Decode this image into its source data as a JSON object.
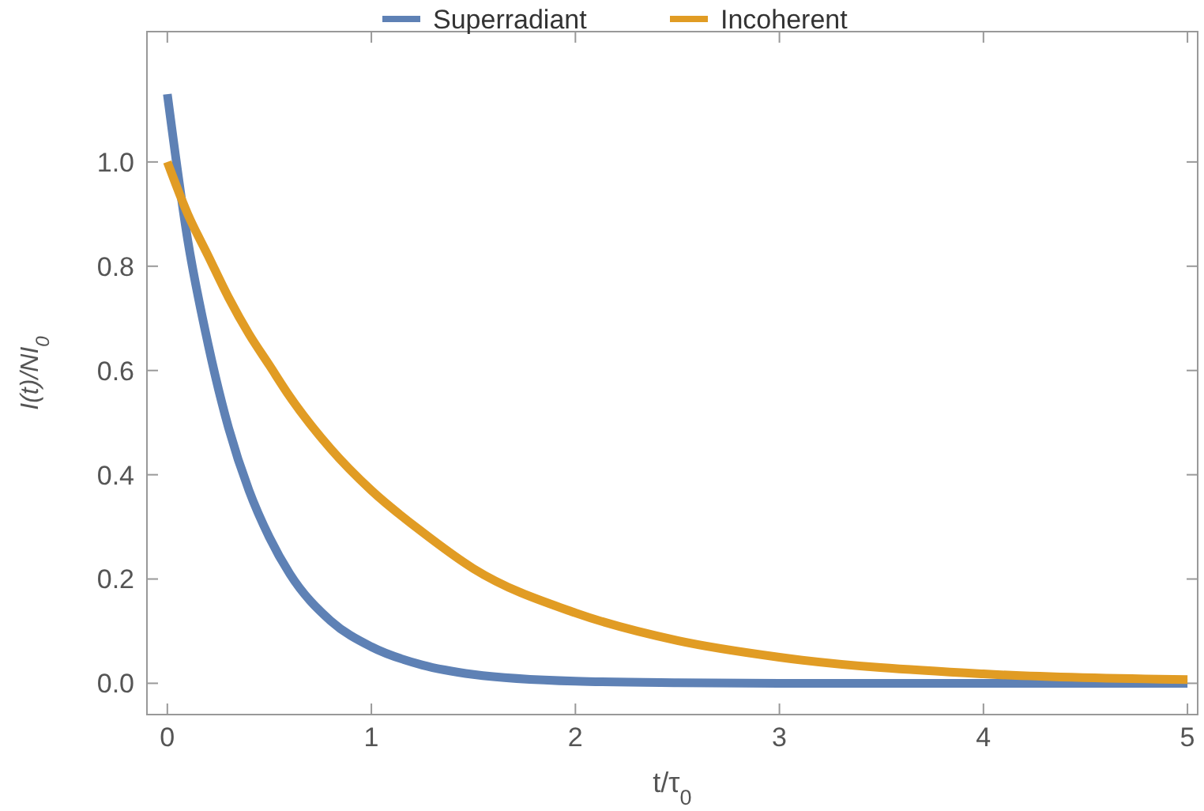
{
  "chart_data": {
    "type": "line",
    "xlabel": "t/τ$_{0}$",
    "ylabel": "I(t)/NI$_{0}$",
    "x": [
      0,
      0.1,
      0.2,
      0.3,
      0.4,
      0.5,
      0.6,
      0.8,
      1,
      1.25,
      1.5,
      2,
      2.5,
      3,
      4,
      5
    ],
    "series": [
      {
        "name": "Superradiant",
        "color": "#5e81b5",
        "values": [
          1.13,
          0.85,
          0.65,
          0.49,
          0.37,
          0.28,
          0.21,
          0.12,
          0.07,
          0.035,
          0.017,
          0.004,
          0.001,
          0,
          0,
          0
        ]
      },
      {
        "name": "Incoherent",
        "color": "#e19c24",
        "values": [
          1.0,
          0.9,
          0.82,
          0.74,
          0.67,
          0.61,
          0.55,
          0.45,
          0.37,
          0.29,
          0.22,
          0.135,
          0.082,
          0.05,
          0.018,
          0.007
        ]
      }
    ],
    "xlim": [
      -0.1,
      5.05
    ],
    "ylim": [
      -0.06,
      1.25
    ],
    "xticks": [
      0,
      1,
      2,
      3,
      4,
      5
    ],
    "yticks": [
      {
        "value": 0,
        "label": "0.0"
      },
      {
        "value": 0.2,
        "label": "0.2"
      },
      {
        "value": 0.4,
        "label": "0.4"
      },
      {
        "value": 0.6,
        "label": "0.6"
      },
      {
        "value": 0.8,
        "label": "0.8"
      },
      {
        "value": 1,
        "label": "1.0"
      }
    ],
    "legend": "top",
    "line_style": "solid",
    "marker": "none"
  }
}
